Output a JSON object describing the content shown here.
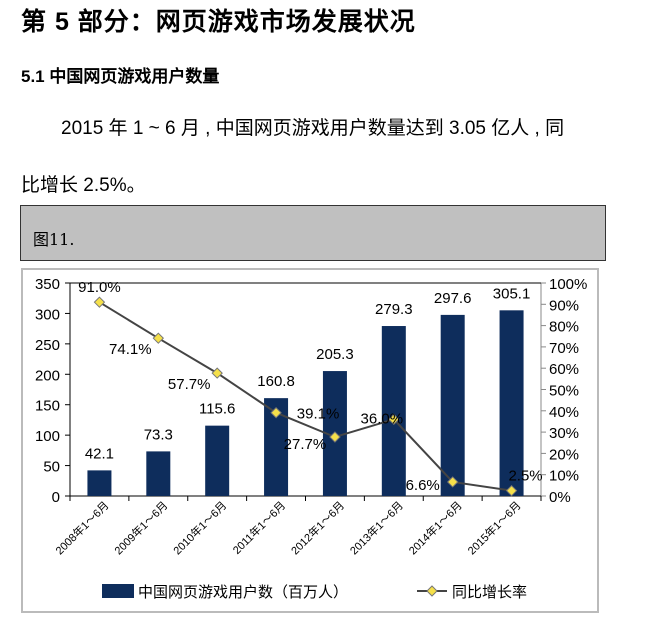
{
  "document": {
    "section_title": "第 5 部分：网页游戏市场发展状况",
    "subsection_title": "5.1 中国网页游戏用户数量",
    "paragraph_line1": "2015 年 1 ~ 6 月 , 中国网页游戏用户数量达到 3.05 亿人 , 同",
    "paragraph_line2": "比增长 2.5%。",
    "figure_label": "图11."
  },
  "chart_data": {
    "type": "bar+line",
    "categories": [
      "2008年1～6月",
      "2009年1～6月",
      "2010年1～6月",
      "2011年1～6月",
      "2012年1～6月",
      "2013年1～6月",
      "2014年1～6月",
      "2015年1～6月"
    ],
    "series": [
      {
        "name": "中国网页游戏用户数（百万人）",
        "type": "bar",
        "axis": "left",
        "color": "#0e2d5c",
        "values": [
          42.1,
          73.3,
          115.6,
          160.8,
          205.3,
          279.3,
          297.6,
          305.1
        ],
        "labels": [
          "42.1",
          "73.3",
          "115.6",
          "160.8",
          "205.3",
          "279.3",
          "297.6",
          "305.1"
        ]
      },
      {
        "name": "同比增长率",
        "type": "line",
        "axis": "right",
        "color": "#444444",
        "marker_color": "#f5e04a",
        "values": [
          91.0,
          74.1,
          57.7,
          39.1,
          27.7,
          36.0,
          6.6,
          2.5
        ],
        "labels": [
          "91.0%",
          "74.1%",
          "57.7%",
          "39.1%",
          "27.7%",
          "36.0%",
          "6.6%",
          "2.5%"
        ]
      }
    ],
    "y_left": {
      "range": [
        0,
        350
      ],
      "ticks": [
        "0",
        "50",
        "100",
        "150",
        "200",
        "250",
        "300",
        "350"
      ]
    },
    "y_right": {
      "range": [
        0,
        100
      ],
      "ticks": [
        "0%",
        "10%",
        "20%",
        "30%",
        "40%",
        "50%",
        "60%",
        "70%",
        "80%",
        "90%",
        "100%"
      ]
    },
    "grid": false,
    "legend_position": "bottom"
  }
}
